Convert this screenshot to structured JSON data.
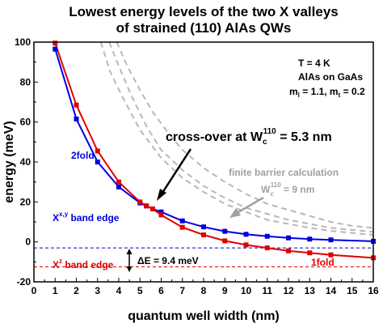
{
  "chart_data": {
    "type": "line",
    "title_line1": "Lowest energy levels of the two X valleys",
    "title_line2": "of strained (110) AlAs QWs",
    "xlabel": "quantum well width (nm)",
    "ylabel": "energy (meV)",
    "xlim": [
      0,
      16
    ],
    "ylim": [
      -20,
      100
    ],
    "xticks": [
      "0",
      "1",
      "2",
      "3",
      "4",
      "5",
      "6",
      "7",
      "8",
      "9",
      "10",
      "11",
      "12",
      "13",
      "14",
      "15",
      "16"
    ],
    "yticks": [
      "-20",
      "0",
      "20",
      "40",
      "60",
      "80",
      "100"
    ],
    "info": {
      "line1": "T = 4 K",
      "line2": "AlAs on GaAs",
      "line3_m": "m",
      "line3_sub1": "l",
      "line3_mid": " = 1.1, m",
      "line3_sub2": "t",
      "line3_end": " = 0.2"
    },
    "series": [
      {
        "name": "2fold",
        "color": "#0000e0",
        "x": [
          1,
          2,
          3,
          4,
          5,
          5.3,
          5.6,
          6,
          7,
          8,
          9,
          10,
          11,
          12,
          13,
          14,
          16
        ],
        "y": [
          96.5,
          61.5,
          40,
          27.5,
          19.5,
          18,
          16.5,
          15,
          10.5,
          7.5,
          5.3,
          3.8,
          2.8,
          2,
          1.4,
          1,
          0.3
        ]
      },
      {
        "name": "1fold",
        "color": "#e00000",
        "x": [
          1,
          2,
          3,
          4,
          5,
          5.3,
          5.6,
          6,
          7,
          8,
          9,
          10,
          11,
          12,
          13,
          14,
          16
        ],
        "y": [
          99.5,
          68.5,
          45.5,
          30,
          20,
          18,
          16.5,
          13.5,
          7.3,
          3.5,
          0.5,
          -1.5,
          -3,
          -4.5,
          -5.5,
          -6.5,
          -8
        ]
      }
    ],
    "band_edges": [
      {
        "name": "x_band_edge",
        "y": -3,
        "color": "#0000e0"
      },
      {
        "name": "z_band_edge",
        "y": -12.5,
        "color": "#e00000"
      }
    ],
    "finite_barrier_curves": [
      {
        "x": [
          3.15,
          3.6,
          4.2,
          5,
          6,
          7,
          8,
          9,
          10,
          11,
          12,
          13,
          14,
          15,
          16
        ],
        "y": [
          100,
          85,
          72,
          56,
          42,
          32,
          25,
          19,
          15,
          11,
          9,
          7,
          5.5,
          4.5,
          3.5
        ]
      },
      {
        "x": [
          3.55,
          4,
          4.6,
          5.3,
          6,
          7,
          8,
          9,
          10,
          11,
          12,
          13,
          14,
          15,
          16
        ],
        "y": [
          100,
          88,
          73,
          58,
          46,
          36,
          28,
          22,
          17,
          14,
          11,
          9,
          7,
          6,
          5
        ]
      },
      {
        "x": [
          3.9,
          4.4,
          5,
          5.6,
          6.3,
          7,
          8,
          9,
          10,
          11,
          12,
          13,
          14,
          15,
          16
        ],
        "y": [
          100,
          88,
          76,
          65,
          55,
          46,
          37,
          30,
          24,
          19,
          16,
          13,
          10,
          8,
          7
        ]
      }
    ],
    "annotations": {
      "label_2fold": "2fold",
      "label_1fold": "1fold",
      "x_edge_main": "X",
      "x_edge_sup": "x,y",
      "x_edge_suffix": " band edge",
      "z_edge_main": "X",
      "z_edge_sup": "z",
      "z_edge_suffix": " band edge",
      "delta_e": "ΔE = 9.4 meV",
      "crossover_main": "cross-over at W",
      "crossover_sub": "c",
      "crossover_sup": "110",
      "crossover_value": " = 5.3 nm",
      "finite_barrier": "finite barrier calculation",
      "wc_main": "W",
      "wc_sub": "c",
      "wc_sup": "110",
      "wc_value": " = 9 nm"
    },
    "colors": {
      "blue": "#0000e0",
      "red": "#e00000",
      "gray": "#b8b8b8",
      "gray_text": "#a0a0a0"
    }
  }
}
